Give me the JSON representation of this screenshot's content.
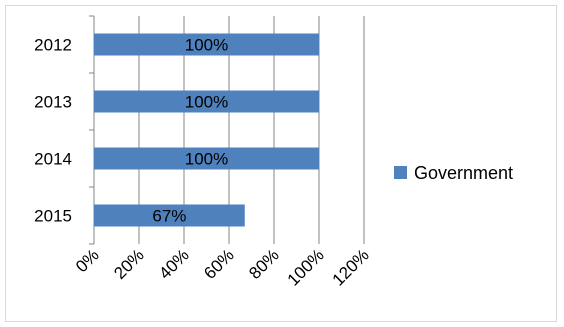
{
  "chart_data": {
    "type": "bar",
    "orientation": "horizontal",
    "categories": [
      "2012",
      "2013",
      "2014",
      "2015"
    ],
    "series": [
      {
        "name": "Government",
        "values": [
          1.0,
          1.0,
          1.0,
          0.67
        ],
        "data_labels": [
          "100%",
          "100%",
          "100%",
          "67%"
        ]
      }
    ],
    "x_ticks": [
      "0%",
      "20%",
      "40%",
      "60%",
      "80%",
      "100%",
      "120%"
    ],
    "xlim": [
      0,
      1.2
    ],
    "grid": "vertical",
    "legend_position": "right",
    "colors": {
      "bar": "#4f81bd",
      "grid": "#868686",
      "text": "#000000"
    }
  }
}
